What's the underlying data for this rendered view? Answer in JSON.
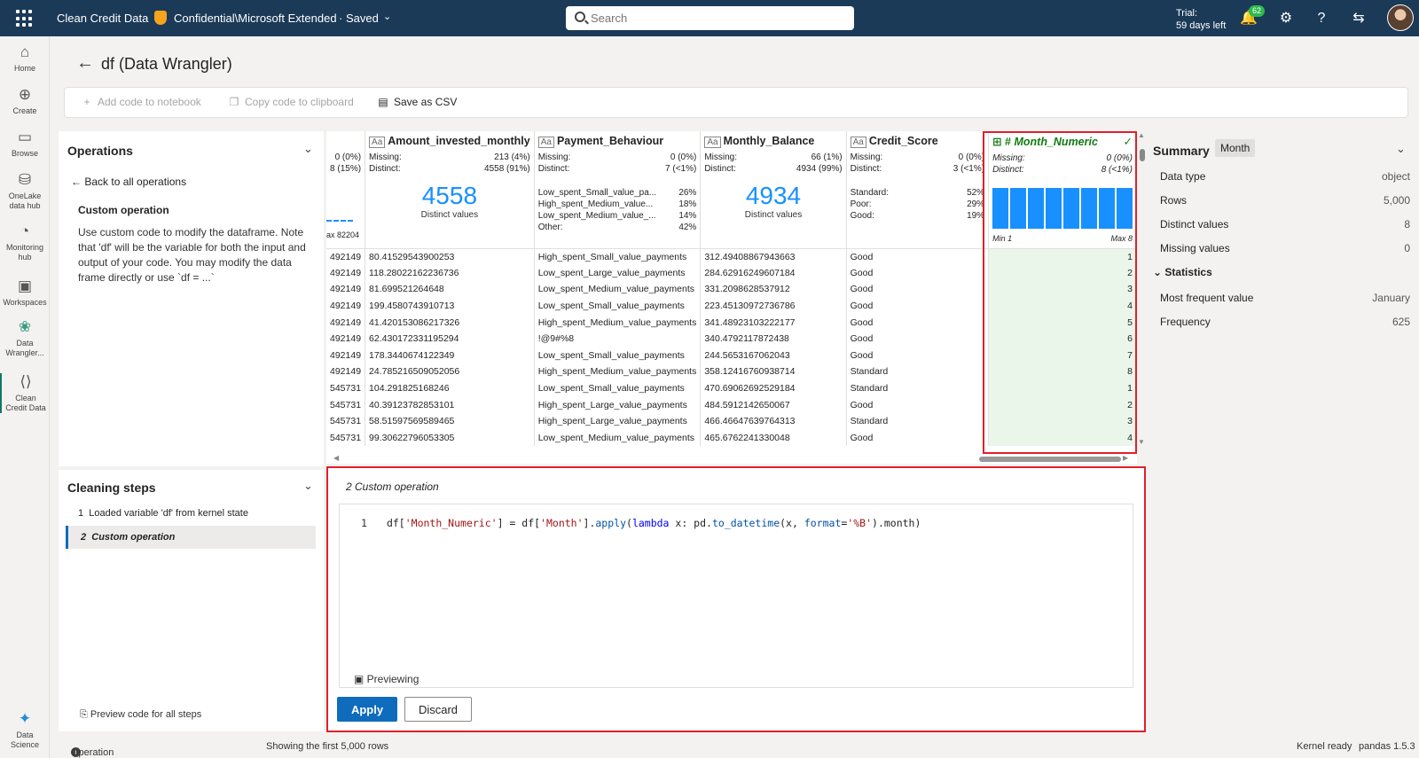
{
  "topbar": {
    "app_name": "Clean Credit Data",
    "sensitivity": "Confidential\\Microsoft Extended",
    "saved": "· Saved",
    "search_placeholder": "Search",
    "trial_line1": "Trial:",
    "trial_line2": "59 days left",
    "notification_count": "62"
  },
  "nav": [
    {
      "label": "Home",
      "icon": "home-icon"
    },
    {
      "label": "Create",
      "icon": "create-icon"
    },
    {
      "label": "Browse",
      "icon": "browse-icon"
    },
    {
      "label": "OneLake data hub",
      "icon": "onelake-icon"
    },
    {
      "label": "Monitoring hub",
      "icon": "monitoring-icon"
    },
    {
      "label": "Workspaces",
      "icon": "workspaces-icon"
    },
    {
      "label": "Data Wrangler...",
      "icon": "data-wrangler-icon"
    },
    {
      "label": "Clean Credit Data",
      "icon": "notebook-icon"
    },
    {
      "label": "Data Science",
      "icon": "data-science-icon"
    }
  ],
  "page": {
    "title": "df (Data Wrangler)"
  },
  "toolbar": {
    "add_code": "Add code to notebook",
    "copy_code": "Copy code to clipboard",
    "save_csv": "Save as CSV"
  },
  "operations": {
    "title": "Operations",
    "back": "Back to all operations",
    "custom_title": "Custom operation",
    "description": "Use custom code to modify the dataframe. Note that 'df' will be the variable for both the input and output of your code. You may modify the data frame directly or use `df = ...`"
  },
  "cleaning": {
    "title": "Cleaning steps",
    "steps": [
      {
        "num": "1",
        "label": "Loaded variable 'df' from kernel state"
      },
      {
        "num": "2",
        "label": "Custom operation"
      }
    ],
    "preview_all": "Preview code for all steps"
  },
  "grid": {
    "partial_col": {
      "missing": "0 (0%)",
      "distinct": "8 (15%)",
      "max_label": "ax 82204",
      "cells": [
        "492149",
        "492149",
        "492149",
        "492149",
        "492149",
        "492149",
        "492149",
        "492149",
        "545731",
        "545731",
        "545731",
        "545731"
      ]
    },
    "columns": [
      {
        "name": "Amount_invested_monthly",
        "type_icon": "Aa",
        "missing_label": "Missing:",
        "missing": "213 (4%)",
        "distinct_label": "Distinct:",
        "distinct": "4558 (91%)",
        "big": "4558",
        "big_label": "Distinct values",
        "cells": [
          "80.41529543900253",
          "118.28022162236736",
          "81.699521264648",
          "199.4580743910713",
          "41.420153086217326",
          "62.430172331195294",
          "178.3440674122349",
          "24.785216509052056",
          "104.291825168246",
          "40.39123782853101",
          "58.51597569589465",
          "99.30622796053305"
        ]
      },
      {
        "name": "Payment_Behaviour",
        "type_icon": "Aa",
        "missing_label": "Missing:",
        "missing": "0 (0%)",
        "distinct_label": "Distinct:",
        "distinct": "7 (<1%)",
        "categories": [
          {
            "label": "Low_spent_Small_value_pa...",
            "pct": "26%"
          },
          {
            "label": "High_spent_Medium_value...",
            "pct": "18%"
          },
          {
            "label": "Low_spent_Medium_value_...",
            "pct": "14%"
          },
          {
            "label": "Other:",
            "pct": "42%"
          }
        ],
        "cells": [
          "High_spent_Small_value_payments",
          "Low_spent_Large_value_payments",
          "Low_spent_Medium_value_payments",
          "Low_spent_Small_value_payments",
          "High_spent_Medium_value_payments",
          "!@9#%8",
          "Low_spent_Small_value_payments",
          "High_spent_Medium_value_payments",
          "Low_spent_Small_value_payments",
          "High_spent_Large_value_payments",
          "High_spent_Large_value_payments",
          "Low_spent_Medium_value_payments"
        ]
      },
      {
        "name": "Monthly_Balance",
        "type_icon": "Aa",
        "missing_label": "Missing:",
        "missing": "66 (1%)",
        "distinct_label": "Distinct:",
        "distinct": "4934 (99%)",
        "big": "4934",
        "big_label": "Distinct values",
        "cells": [
          "312.49408867943663",
          "284.62916249607184",
          "331.2098628537912",
          "223.45130972736786",
          "341.48923103222177",
          "340.4792117872438",
          "244.5653167062043",
          "358.12416760938714",
          "470.69062692529184",
          "484.5912142650067",
          "466.46647639764313",
          "465.6762241330048"
        ]
      },
      {
        "name": "Credit_Score",
        "type_icon": "Aa",
        "missing_label": "Missing:",
        "missing": "0 (0%)",
        "distinct_label": "Distinct:",
        "distinct": "3 (<1%)",
        "categories": [
          {
            "label": "Standard:",
            "pct": "52%"
          },
          {
            "label": "Poor:",
            "pct": "29%"
          },
          {
            "label": "Good:",
            "pct": "19%"
          }
        ],
        "cells": [
          "Good",
          "Good",
          "Good",
          "Good",
          "Good",
          "Good",
          "Good",
          "Standard",
          "Standard",
          "Good",
          "Standard",
          "Good"
        ]
      }
    ],
    "new_column": {
      "name": "Month_Numeric",
      "type_icon": "#",
      "missing_label": "Missing:",
      "missing": "0 (0%)",
      "distinct_label": "Distinct:",
      "distinct": "8 (<1%)",
      "min": "Min 1",
      "max": "Max 8",
      "histogram": [
        1,
        1,
        1,
        1,
        1,
        1,
        1,
        1
      ],
      "cells": [
        "1",
        "2",
        "3",
        "4",
        "5",
        "6",
        "7",
        "8",
        "1",
        "2",
        "3",
        "4"
      ]
    }
  },
  "code_panel": {
    "title": "2  Custom operation",
    "line_number": "1",
    "code_tokens": [
      {
        "t": "df[",
        "c": ""
      },
      {
        "t": "'Month_Numeric'",
        "c": "tk-str"
      },
      {
        "t": "] = df[",
        "c": ""
      },
      {
        "t": "'Month'",
        "c": "tk-str"
      },
      {
        "t": "].",
        "c": ""
      },
      {
        "t": "apply",
        "c": "tk-fn"
      },
      {
        "t": "(",
        "c": ""
      },
      {
        "t": "lambda",
        "c": "tk-kw"
      },
      {
        "t": " x: pd.",
        "c": ""
      },
      {
        "t": "to_datetime",
        "c": "tk-fn"
      },
      {
        "t": "(x, ",
        "c": ""
      },
      {
        "t": "format",
        "c": "tk-fn"
      },
      {
        "t": "=",
        "c": ""
      },
      {
        "t": "'%B'",
        "c": "tk-str"
      },
      {
        "t": ").month)",
        "c": ""
      }
    ],
    "previewing": "Previewing",
    "apply": "Apply",
    "discard": "Discard"
  },
  "summary": {
    "title": "Summary",
    "column": "Month",
    "rows": [
      {
        "label": "Data type",
        "value": "object"
      },
      {
        "label": "Rows",
        "value": "5,000"
      },
      {
        "label": "Distinct values",
        "value": "8"
      },
      {
        "label": "Missing values",
        "value": "0"
      }
    ],
    "statistics_title": "Statistics",
    "stats": [
      {
        "label": "Most frequent value",
        "value": "January"
      },
      {
        "label": "Frequency",
        "value": "625"
      }
    ]
  },
  "statusbar": {
    "preview": "Operation preview: Custom operation",
    "rows": "Showing the first 5,000 rows",
    "kernel": "Kernel ready",
    "pandas": "pandas 1.5.3"
  },
  "colors": {
    "topbar": "#1b3a57",
    "accent": "#0f6cbd",
    "highlight": "#e0202a",
    "new_column": "#eaf6ea",
    "histogram": "#1890ff"
  }
}
